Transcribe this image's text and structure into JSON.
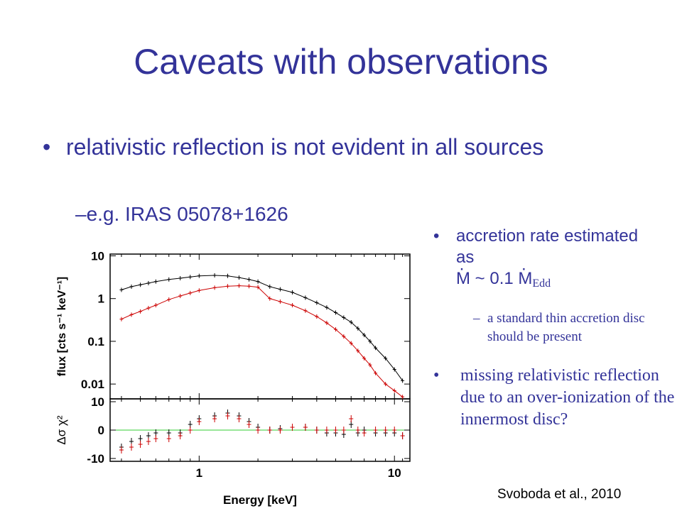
{
  "slide": {
    "title": "Caveats with observations",
    "bullet1": "relativistic reflection is not evident in all sources",
    "bullet1_sub": "e.g. IRAS 05078+1626",
    "right_bullet1_prefix": "accretion rate estimated as",
    "right_bullet1_mdot": "M",
    "right_bullet1_approx": "~ 0.1",
    "right_bullet1_mdot2": "M",
    "right_bullet1_sub": "Edd",
    "right_sub": "a standard thin accretion disc should be present",
    "right_bullet2": "missing relativistic reflection due to an over-ionization of the innermost disc?",
    "citation": "Svoboda et al., 2010",
    "bullet_symbol": "•",
    "dash_symbol": "–"
  },
  "chart_data": {
    "type": "scatter",
    "xlabel": "Energy [keV]",
    "x_scale": "log",
    "xlim": [
      0.35,
      12
    ],
    "x_ticks": [
      {
        "v": 1,
        "label": "1"
      },
      {
        "v": 10,
        "label": "10"
      }
    ],
    "top_panel": {
      "ylabel": "flux [cts s⁻¹ keV⁻¹]",
      "y_scale": "log",
      "ylim": [
        0.0045,
        11
      ],
      "y_ticks": [
        {
          "v": 10,
          "label": "10"
        },
        {
          "v": 1,
          "label": "1"
        },
        {
          "v": 0.1,
          "label": "0.1"
        },
        {
          "v": 0.01,
          "label": "0.01"
        }
      ],
      "series": [
        {
          "color": "#000000",
          "x": [
            0.4,
            0.45,
            0.5,
            0.55,
            0.6,
            0.7,
            0.8,
            0.9,
            1,
            1.2,
            1.4,
            1.6,
            1.8,
            2,
            2.3,
            2.6,
            3,
            3.5,
            4,
            4.5,
            5,
            5.5,
            6,
            6.5,
            7,
            7.5,
            8,
            9,
            10,
            11
          ],
          "y": [
            1.6,
            1.9,
            2.1,
            2.3,
            2.5,
            2.8,
            3.0,
            3.2,
            3.4,
            3.5,
            3.4,
            3.1,
            2.8,
            2.5,
            1.9,
            1.65,
            1.4,
            1.05,
            0.8,
            0.62,
            0.47,
            0.36,
            0.28,
            0.2,
            0.14,
            0.1,
            0.07,
            0.04,
            0.022,
            0.012
          ]
        },
        {
          "color": "#cc0000",
          "x": [
            0.4,
            0.45,
            0.5,
            0.55,
            0.6,
            0.7,
            0.8,
            0.9,
            1,
            1.2,
            1.4,
            1.6,
            1.8,
            2,
            2.3,
            2.6,
            3,
            3.5,
            4,
            4.5,
            5,
            5.5,
            6,
            6.5,
            7,
            7.5,
            8,
            9,
            10,
            11
          ],
          "y": [
            0.33,
            0.42,
            0.5,
            0.6,
            0.7,
            0.95,
            1.15,
            1.35,
            1.55,
            1.8,
            1.95,
            2.0,
            1.95,
            1.85,
            1.0,
            0.85,
            0.7,
            0.52,
            0.38,
            0.27,
            0.19,
            0.13,
            0.09,
            0.06,
            0.04,
            0.028,
            0.018,
            0.01,
            0.007,
            0.005
          ]
        }
      ]
    },
    "bottom_panel": {
      "ylabel": "Δσ χ²",
      "ylim": [
        -11,
        11
      ],
      "y_ticks": [
        {
          "v": 10,
          "label": "10"
        },
        {
          "v": 0,
          "label": "0"
        },
        {
          "v": -10,
          "label": "-10"
        }
      ],
      "zero_line_color": "#33cc33",
      "series": [
        {
          "color": "#000000",
          "x": [
            0.4,
            0.45,
            0.5,
            0.55,
            0.6,
            0.7,
            0.8,
            0.9,
            1,
            1.2,
            1.4,
            1.6,
            1.8,
            2,
            2.3,
            2.6,
            3,
            3.5,
            4,
            4.5,
            5,
            5.5,
            6,
            6.5,
            7,
            8,
            9,
            10,
            11
          ],
          "y": [
            -6,
            -4,
            -3,
            -2,
            -1,
            -1,
            -1,
            2,
            4,
            5,
            6,
            5,
            3,
            1,
            0,
            0.5,
            1,
            1,
            0,
            -1,
            -1,
            -1.5,
            2,
            -1,
            0,
            -1,
            -1,
            -1,
            -2
          ]
        },
        {
          "color": "#cc0000",
          "x": [
            0.4,
            0.45,
            0.5,
            0.55,
            0.6,
            0.7,
            0.8,
            0.9,
            1,
            1.2,
            1.4,
            1.6,
            1.8,
            2,
            2.3,
            2.6,
            3,
            3.5,
            4,
            4.5,
            5,
            5.5,
            6,
            6.5,
            7,
            8,
            9,
            10,
            11
          ],
          "y": [
            -7,
            -6,
            -5,
            -4,
            -3,
            -3,
            -2,
            0,
            3,
            4,
            5,
            4,
            2,
            0,
            0,
            0,
            1,
            1,
            0,
            0,
            0,
            0,
            4,
            0,
            -1,
            0,
            0,
            0,
            -2
          ]
        }
      ]
    }
  }
}
